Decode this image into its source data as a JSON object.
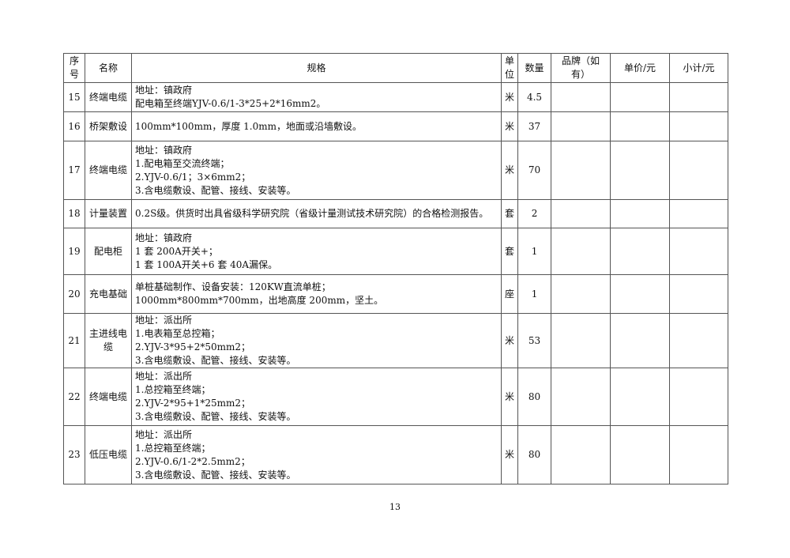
{
  "headers": {
    "no": "序号",
    "name": "名称",
    "spec": "规格",
    "unit": "单位",
    "qty": "数量",
    "brand": "品牌（如有）",
    "price": "单价/元",
    "subtotal": "小计/元"
  },
  "rows": [
    {
      "no": "15",
      "name": "终端电缆",
      "spec": [
        "地址：镇政府",
        "配电箱至终端YJV-0.6/1-3*25+2*16mm2。"
      ],
      "unit": "米",
      "qty": "4.5"
    },
    {
      "no": "16",
      "name": "桥架敷设",
      "spec": [
        "100mm*100mm，厚度 1.0mm，地面或沿墙敷设。"
      ],
      "unit": "米",
      "qty": "37"
    },
    {
      "no": "17",
      "name": "终端电缆",
      "spec": [
        "地址：镇政府",
        "1.配电箱至交流终端；",
        "2.YJV-0.6/1；3×6mm2；",
        "3.含电缆敷设、配管、接线、安装等。"
      ],
      "unit": "米",
      "qty": "70"
    },
    {
      "no": "18",
      "name": "计量装置",
      "spec": [
        "0.2S级。供货时出具省级科学研究院（省级计量测试技术研究院）的合格检测报告。"
      ],
      "unit": "套",
      "qty": "2"
    },
    {
      "no": "19",
      "name": "配电柜",
      "spec": [
        "地址：镇政府",
        "1 套 200A开关+；",
        "1 套 100A开关+6 套 40A漏保。"
      ],
      "unit": "套",
      "qty": "1"
    },
    {
      "no": "20",
      "name": "充电基础",
      "spec": [
        "单桩基础制作、设备安装：120KW直流单桩；",
        "1000mm*800mm*700mm，出地高度 200mm，坚土。"
      ],
      "unit": "座",
      "qty": "1"
    },
    {
      "no": "21",
      "name": "主进线电缆",
      "spec": [
        "地址：派出所",
        "1.电表箱至总控箱；",
        "2.YJV-3*95+2*50mm2；",
        "3.含电缆敷设、配管、接线、安装等。"
      ],
      "unit": "米",
      "qty": "53"
    },
    {
      "no": "22",
      "name": "终端电缆",
      "spec": [
        "地址：派出所",
        "1.总控箱至终端；",
        "2.YJV-2*95+1*25mm2；",
        "3.含电缆敷设、配管、接线、安装等。"
      ],
      "unit": "米",
      "qty": "80"
    },
    {
      "no": "23",
      "name": "低压电缆",
      "spec": [
        "地址：派出所",
        "1.总控箱至终端；",
        "2.YJV-0.6/1-2*2.5mm2；",
        "3.含电缆敷设、配管、接线、安装等。"
      ],
      "unit": "米",
      "qty": "80"
    }
  ],
  "page_number": "13"
}
